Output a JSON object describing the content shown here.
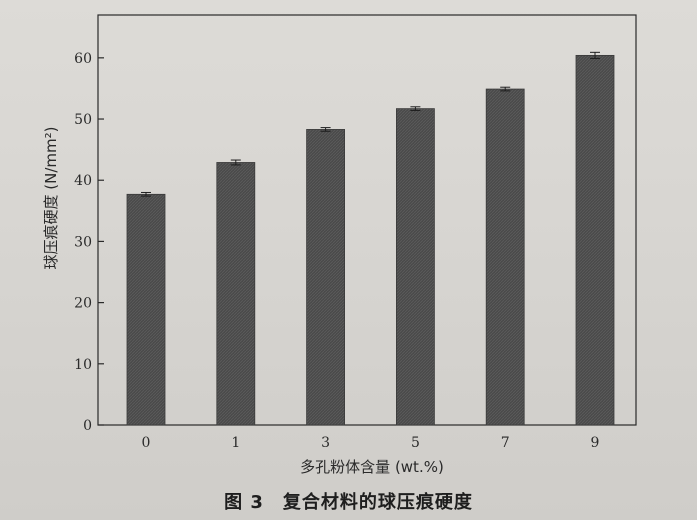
{
  "figure_caption": "图 3　复合材料的球压痕硬度",
  "chart_data": {
    "type": "bar",
    "categories": [
      "0",
      "1",
      "3",
      "5",
      "7",
      "9"
    ],
    "values": [
      37.7,
      42.9,
      48.3,
      51.7,
      54.9,
      60.4
    ],
    "errors": [
      0.3,
      0.4,
      0.3,
      0.3,
      0.3,
      0.5
    ],
    "xlabel": "多孔粉体含量 (wt.%)",
    "ylabel": "球压痕硬度 (N/mm²)",
    "ylim": [
      0,
      67
    ],
    "yticks": [
      0,
      10,
      20,
      30,
      40,
      50,
      60
    ],
    "grid": false,
    "bar_color": "#4a4a4a"
  }
}
